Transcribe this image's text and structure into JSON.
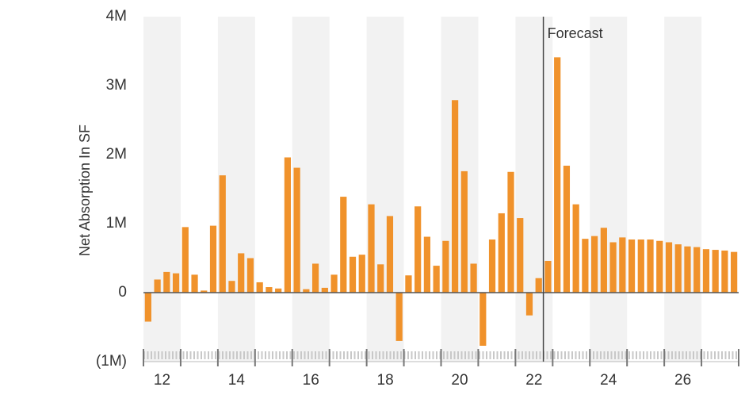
{
  "chart_data": {
    "type": "bar",
    "y_axis_label": "Net Absorption In SF",
    "annotation": "Forecast",
    "forecast_index": 43,
    "x_labels": [
      "12",
      "14",
      "16",
      "18",
      "20",
      "22",
      "24",
      "26"
    ],
    "values": [
      -420000,
      190000,
      300000,
      280000,
      950000,
      260000,
      30000,
      970000,
      1700000,
      170000,
      570000,
      500000,
      150000,
      80000,
      60000,
      1960000,
      1810000,
      50000,
      420000,
      70000,
      260000,
      1390000,
      520000,
      550000,
      1280000,
      410000,
      1110000,
      -700000,
      250000,
      1250000,
      810000,
      390000,
      750000,
      2790000,
      1760000,
      420000,
      -770000,
      770000,
      1150000,
      1750000,
      1080000,
      -330000,
      210000,
      460000,
      3410000,
      1840000,
      1280000,
      780000,
      820000,
      940000,
      730000,
      800000,
      770000,
      770000,
      770000,
      750000,
      730000,
      700000,
      670000,
      660000,
      630000,
      620000,
      610000,
      590000
    ],
    "color": "#f0922b",
    "ylim": [
      -1000000,
      4000000
    ],
    "yticks": [
      {
        "value": -1000000,
        "label": "(1M)"
      },
      0,
      {
        "value": 1000000,
        "label": "1M"
      },
      {
        "value": 2000000,
        "label": "2M"
      },
      {
        "value": 3000000,
        "label": "3M"
      },
      {
        "value": 4000000,
        "label": "4M"
      }
    ],
    "shaded_years": true
  }
}
